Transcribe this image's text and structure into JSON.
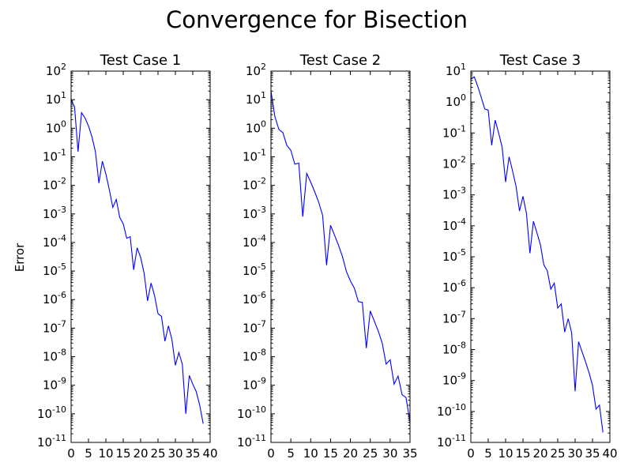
{
  "figure": {
    "title": "Convergence for Bisection",
    "ylabel": "Error"
  },
  "chart_data": [
    {
      "type": "line",
      "title": "Test Case 1",
      "xlabel": "",
      "ylabel": "Error",
      "yscale": "log",
      "xlim": [
        0,
        40
      ],
      "ylim": [
        1e-11,
        100
      ],
      "xticks": [
        0,
        5,
        10,
        15,
        20,
        25,
        30,
        35,
        40
      ],
      "yticks_exp": [
        -11,
        -10,
        -9,
        -8,
        -7,
        -6,
        -5,
        -4,
        -3,
        -2,
        -1,
        0,
        1,
        2
      ],
      "grid": false,
      "color": "#0000ff",
      "x": [
        0,
        1,
        2,
        3,
        4,
        5,
        6,
        7,
        8,
        9,
        10,
        11,
        12,
        13,
        14,
        15,
        16,
        17,
        18,
        19,
        20,
        21,
        22,
        23,
        24,
        25,
        26,
        27,
        28,
        29,
        30,
        31,
        32,
        33,
        34,
        35,
        36,
        37,
        38
      ],
      "y": [
        10,
        5.5,
        0.15,
        3.5,
        2.3,
        1.2,
        0.5,
        0.15,
        0.012,
        0.07,
        0.025,
        0.007,
        0.0017,
        0.0032,
        0.00075,
        0.00045,
        0.00014,
        0.00016,
        1.1e-05,
        6.5e-05,
        3e-05,
        8.5e-06,
        9e-07,
        3.8e-06,
        1.4e-06,
        3.2e-07,
        2.6e-07,
        3.5e-08,
        1.2e-07,
        4e-08,
        5e-09,
        1.4e-08,
        5.5e-09,
        1e-10,
        2.2e-09,
        1.1e-09,
        6e-10,
        2e-10,
        4.5e-11
      ]
    },
    {
      "type": "line",
      "title": "Test Case 2",
      "xlabel": "",
      "ylabel": "",
      "yscale": "log",
      "xlim": [
        0,
        35
      ],
      "ylim": [
        1e-11,
        100
      ],
      "xticks": [
        0,
        5,
        10,
        15,
        20,
        25,
        30,
        35
      ],
      "yticks_exp": [
        -11,
        -10,
        -9,
        -8,
        -7,
        -6,
        -5,
        -4,
        -3,
        -2,
        -1,
        0,
        1,
        2
      ],
      "grid": false,
      "color": "#0000ff",
      "x": [
        0,
        1,
        2,
        3,
        4,
        5,
        6,
        7,
        8,
        9,
        10,
        11,
        12,
        13,
        14,
        15,
        16,
        17,
        18,
        19,
        20,
        21,
        22,
        23,
        24,
        25,
        26,
        27,
        28,
        29,
        30,
        31,
        32,
        33,
        34,
        35
      ],
      "y": [
        20,
        2.5,
        0.9,
        0.7,
        0.25,
        0.17,
        0.055,
        0.06,
        0.0008,
        0.026,
        0.013,
        0.006,
        0.0026,
        0.0009,
        1.6e-05,
        0.0004,
        0.00018,
        8e-05,
        3.2e-05,
        9.5e-06,
        4.5e-06,
        2.5e-06,
        8.5e-07,
        8e-07,
        2e-08,
        4e-07,
        1.8e-07,
        8e-08,
        3e-08,
        5.5e-09,
        7.8e-09,
        1.1e-09,
        2.1e-09,
        4.7e-10,
        3.7e-10,
        5e-11
      ]
    },
    {
      "type": "line",
      "title": "Test Case 3",
      "xlabel": "",
      "ylabel": "",
      "yscale": "log",
      "xlim": [
        0,
        40
      ],
      "ylim": [
        1e-11,
        10
      ],
      "xticks": [
        0,
        5,
        10,
        15,
        20,
        25,
        30,
        35,
        40
      ],
      "yticks_exp": [
        -11,
        -10,
        -9,
        -8,
        -7,
        -6,
        -5,
        -4,
        -3,
        -2,
        -1,
        0,
        1
      ],
      "grid": false,
      "color": "#0000ff",
      "x": [
        0,
        1,
        2,
        3,
        4,
        5,
        6,
        7,
        8,
        9,
        10,
        11,
        12,
        13,
        14,
        15,
        16,
        17,
        18,
        19,
        20,
        21,
        22,
        23,
        24,
        25,
        26,
        27,
        28,
        29,
        30,
        31,
        32,
        33,
        34,
        35,
        36,
        37,
        38
      ],
      "y": [
        5.5,
        6.5,
        3.2,
        1.4,
        0.6,
        0.55,
        0.04,
        0.26,
        0.1,
        0.035,
        0.0026,
        0.017,
        0.006,
        0.0019,
        0.0003,
        0.0009,
        0.00025,
        1.3e-05,
        0.00014,
        6e-05,
        2.5e-05,
        5.5e-06,
        3.5e-06,
        9e-07,
        1.4e-06,
        2.2e-07,
        3e-07,
        3.7e-08,
        1e-07,
        3.5e-08,
        4.5e-10,
        1.8e-08,
        8.5e-09,
        4e-09,
        1.8e-09,
        7e-10,
        1.2e-10,
        1.6e-10,
        2.1e-11
      ]
    }
  ]
}
